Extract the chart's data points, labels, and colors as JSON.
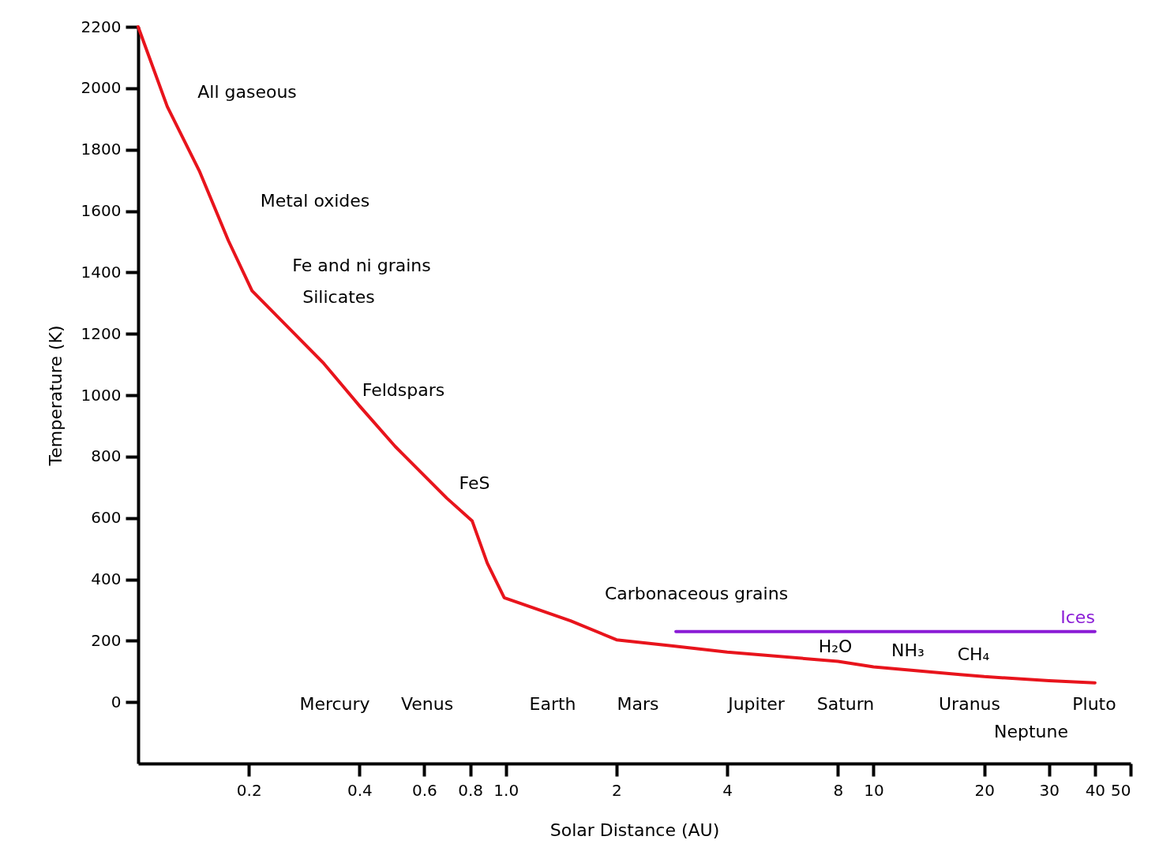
{
  "chart_data": {
    "type": "line",
    "xlabel": "Solar Distance (AU)",
    "ylabel": "Temperature (K)",
    "log": "x",
    "xlim": [
      0.1,
      50
    ],
    "xticks": [
      0.2,
      0.4,
      0.6,
      0.8,
      {
        "value": 1,
        "label": "1.0"
      },
      2,
      4,
      8,
      10,
      20,
      30,
      40,
      50
    ],
    "ylim": [
      -200,
      2200
    ],
    "yticks": [
      0,
      200,
      400,
      600,
      800,
      1000,
      1200,
      1400,
      1600,
      1800,
      2000,
      2200
    ],
    "grid": false,
    "series": [
      {
        "color": "#e8141c",
        "x": [
          0.1,
          0.12,
          0.147,
          0.176,
          0.204,
          0.32,
          0.4,
          0.5,
          0.69,
          0.81,
          0.89,
          0.99,
          1.5,
          2,
          2.85,
          4,
          8,
          10,
          17.2,
          20,
          30,
          40
        ],
        "values": [
          2200,
          1940,
          1728,
          1503,
          1340,
          1103,
          965,
          833,
          665,
          590,
          453,
          340,
          265,
          203,
          183,
          163,
          133,
          115,
          90,
          83,
          70,
          63
        ]
      },
      {
        "name": "Ices",
        "color": "#8a1bd6",
        "x": [
          2.9,
          40
        ],
        "values": [
          230,
          230
        ]
      }
    ],
    "annotations": [
      "All gaseous",
      "Metal oxides",
      "Fe and ni grains",
      "Silicates",
      "Feldspars",
      "FeS",
      "Carbonaceous grains",
      "H₂O",
      "NH₃",
      "CH₄",
      "Mercury",
      "Venus",
      "Earth",
      "Mars",
      "Jupiter",
      "Saturn",
      "Uranus",
      "Neptune",
      "Pluto"
    ]
  }
}
